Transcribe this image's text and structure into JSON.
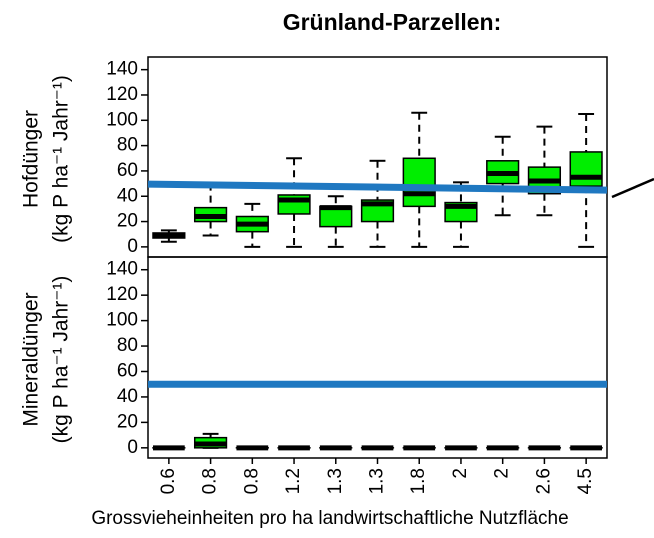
{
  "title": "Grünland-Parzellen:",
  "xlabel": "Grossvieheinheiten pro ha landwirtschaftliche Nutzfläche",
  "chart_data": [
    {
      "type": "box",
      "ylabel": [
        "Hofdünger",
        "(kg P ha⁻¹ Jahr⁻¹)"
      ],
      "color": "#00ee00",
      "ylim": [
        -8,
        150
      ],
      "yticks": [
        0,
        20,
        40,
        60,
        80,
        100,
        120,
        140
      ],
      "reference_line": {
        "values": [
          49.6,
          44.8
        ],
        "color": "#1f78c1"
      },
      "boxes": [
        {
          "min": 4,
          "q1": 7,
          "median": 9,
          "q3": 11,
          "max": 13
        },
        {
          "min": 9,
          "q1": 20,
          "median": 24,
          "q3": 31,
          "max": 50
        },
        {
          "min": 0,
          "q1": 12,
          "median": 18,
          "q3": 24,
          "max": 34
        },
        {
          "min": 0,
          "q1": 26,
          "median": 37,
          "q3": 41,
          "max": 70
        },
        {
          "min": 0,
          "q1": 16,
          "median": 31,
          "q3": 32,
          "max": 40
        },
        {
          "min": 0,
          "q1": 20,
          "median": 34,
          "q3": 37,
          "max": 68
        },
        {
          "min": 0,
          "q1": 32,
          "median": 42,
          "q3": 70,
          "max": 106
        },
        {
          "min": 0,
          "q1": 20,
          "median": 32,
          "q3": 35,
          "max": 51
        },
        {
          "min": 25,
          "q1": 50,
          "median": 58,
          "q3": 68,
          "max": 87
        },
        {
          "min": 25,
          "q1": 42,
          "median": 52,
          "q3": 63,
          "max": 95
        },
        {
          "min": 0,
          "q1": 48,
          "median": 55,
          "q3": 75,
          "max": 105
        }
      ]
    },
    {
      "type": "box",
      "ylabel": [
        "Mineraldünger",
        "(kg P ha⁻¹ Jahr⁻¹)"
      ],
      "color": "#00ee00",
      "ylim": [
        -8,
        150
      ],
      "yticks": [
        0,
        20,
        40,
        60,
        80,
        100,
        120,
        140
      ],
      "reference_line": {
        "values": [
          50,
          50
        ],
        "color": "#1f78c1"
      },
      "categories": [
        "0.6",
        "0.8",
        "0.8",
        "1.2",
        "1.3",
        "1.3",
        "1.8",
        "2",
        "2",
        "2.6",
        "4.5"
      ],
      "boxes": [
        {
          "min": 0,
          "q1": 0,
          "median": 0,
          "q3": 0,
          "max": 0
        },
        {
          "min": 0,
          "q1": 0,
          "median": 3,
          "q3": 8,
          "max": 11
        },
        {
          "min": 0,
          "q1": 0,
          "median": 0,
          "q3": 0,
          "max": 0
        },
        {
          "min": 0,
          "q1": 0,
          "median": 0,
          "q3": 0,
          "max": 0
        },
        {
          "min": 0,
          "q1": 0,
          "median": 0,
          "q3": 0,
          "max": 0
        },
        {
          "min": 0,
          "q1": 0,
          "median": 0,
          "q3": 0,
          "max": 0
        },
        {
          "min": 0,
          "q1": 0,
          "median": 0,
          "q3": 0,
          "max": 0
        },
        {
          "min": 0,
          "q1": 0,
          "median": 0,
          "q3": 0,
          "max": 0
        },
        {
          "min": 0,
          "q1": 0,
          "median": 0,
          "q3": 0,
          "max": 0
        },
        {
          "min": 0,
          "q1": 0,
          "median": 0,
          "q3": 0,
          "max": 0
        },
        {
          "min": 0,
          "q1": 0,
          "median": 0,
          "q3": 0,
          "max": 0
        }
      ]
    }
  ]
}
